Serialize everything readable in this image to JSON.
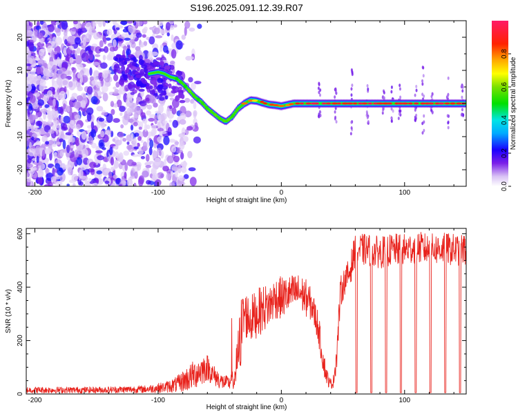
{
  "figure_title": "S196.2025.091.12.39.R07",
  "colors": {
    "snr_line": "#e8221c",
    "axis": "#000000"
  },
  "chart_data": [
    {
      "type": "heatmap",
      "title": "S196.2025.091.12.39.R07",
      "xlabel": "Height of straight line (km)",
      "ylabel": "Frequency (Hz)",
      "xlim": [
        -207,
        150
      ],
      "ylim": [
        -25,
        25
      ],
      "x_ticks": [
        -200,
        -100,
        0,
        100
      ],
      "x_tick_labels": [
        "-200",
        "-100",
        "0",
        "100"
      ],
      "y_ticks": [
        -20,
        -10,
        0,
        10,
        20
      ],
      "y_tick_labels": [
        "-20",
        "-10",
        "0",
        "10",
        "20"
      ],
      "colorbar": {
        "label": "Normalized spectral amplitude",
        "range": [
          0,
          1
        ],
        "ticks": [
          0.0,
          0.2,
          0.4,
          0.6,
          0.8
        ],
        "tick_labels": [
          "0.0",
          "0.2",
          "0.4",
          "0.6",
          "0.8"
        ]
      },
      "ridge": {
        "description": "dominant frequency track",
        "x": [
          -107,
          -100,
          -95,
          -90,
          -85,
          -80,
          -75,
          -70,
          -65,
          -60,
          -55,
          -50,
          -45,
          -40,
          -35,
          -30,
          -25,
          -20,
          -15,
          -10,
          -5,
          0,
          10,
          20,
          30,
          40,
          60,
          80,
          100,
          120,
          140,
          150
        ],
        "y": [
          9,
          9.5,
          9,
          8,
          7.5,
          6,
          4,
          2,
          0.5,
          -1.5,
          -3,
          -4.5,
          -5.5,
          -4,
          -1.5,
          0,
          1,
          0.8,
          0.2,
          -0.3,
          -0.5,
          -0.8,
          0,
          0,
          0,
          0,
          0,
          0,
          0,
          0,
          0,
          0
        ]
      },
      "noise_region_x": [
        -207,
        -90
      ]
    },
    {
      "type": "line",
      "title": "",
      "xlabel": "Height of straight line (km)",
      "ylabel": "SNR (10 * v/v)",
      "xlim": [
        -207,
        150
      ],
      "ylim": [
        0,
        620
      ],
      "x_ticks": [
        -200,
        -100,
        0,
        100
      ],
      "x_tick_labels": [
        "-200",
        "-100",
        "0",
        "100"
      ],
      "y_ticks": [
        0,
        200,
        400,
        600
      ],
      "y_tick_labels": [
        "0",
        "200",
        "400",
        "600"
      ],
      "series": [
        {
          "name": "SNR",
          "color": "#e8221c",
          "envelope_x": [
            -207,
            -150,
            -110,
            -95,
            -85,
            -75,
            -65,
            -60,
            -55,
            -48,
            -42,
            -38,
            -35,
            -32,
            -30,
            -25,
            -20,
            -15,
            -10,
            -5,
            0,
            5,
            10,
            15,
            20,
            25,
            30,
            33,
            36,
            39,
            42,
            45,
            48,
            52,
            55,
            60,
            70,
            80,
            90,
            100,
            110,
            120,
            130,
            140,
            150
          ],
          "envelope_mean": [
            15,
            15,
            18,
            25,
            35,
            60,
            90,
            100,
            70,
            45,
            40,
            60,
            150,
            250,
            300,
            280,
            300,
            320,
            330,
            360,
            360,
            370,
            380,
            380,
            360,
            330,
            250,
            150,
            80,
            40,
            40,
            150,
            380,
            430,
            450,
            540,
            540,
            530,
            540,
            540,
            550,
            540,
            545,
            540,
            540
          ],
          "envelope_amp": [
            12,
            12,
            14,
            20,
            30,
            50,
            60,
            50,
            40,
            30,
            25,
            40,
            100,
            140,
            90,
            90,
            90,
            90,
            80,
            80,
            80,
            70,
            70,
            70,
            70,
            60,
            60,
            50,
            40,
            20,
            20,
            60,
            60,
            50,
            60,
            60,
            60,
            60,
            60,
            60,
            60,
            60,
            60,
            60,
            60
          ],
          "dropouts_x": [
            61,
            73,
            85,
            97,
            109,
            121,
            133,
            145
          ],
          "dropout_value": 5
        }
      ]
    }
  ]
}
